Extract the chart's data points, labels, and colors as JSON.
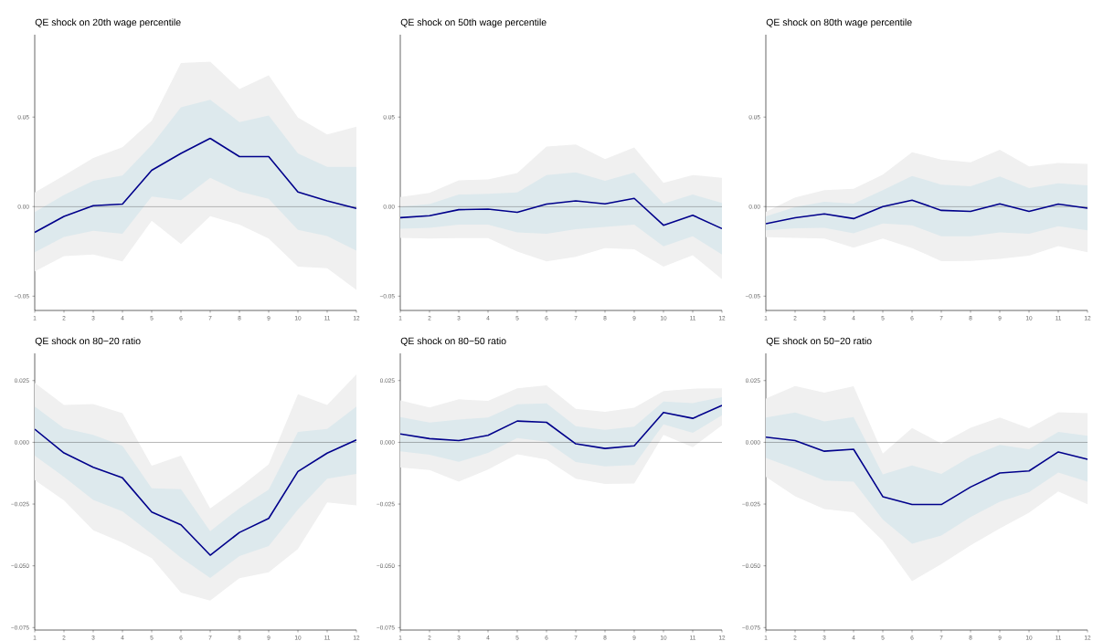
{
  "chart_data": [
    {
      "type": "line",
      "title": "QE shock on 20th wage percentile",
      "x": [
        1,
        2,
        3,
        4,
        5,
        6,
        7,
        8,
        9,
        10,
        11,
        12
      ],
      "xlim": [
        1,
        12
      ],
      "xticks": [
        1,
        2,
        3,
        4,
        5,
        6,
        7,
        8,
        9,
        10,
        11,
        12
      ],
      "ylim": [
        -0.058,
        0.096
      ],
      "yticks": [
        {
          "value": -0.05,
          "label": "−0.05"
        },
        {
          "value": 0,
          "label": "0.00"
        },
        {
          "value": 0.05,
          "label": "0.05"
        }
      ],
      "ref_lines": [
        {
          "axis": "y",
          "value": 0,
          "color": "#333333"
        }
      ],
      "series": [
        {
          "color": "#f0f0f0",
          "values": [
            null,
            null,
            null,
            null,
            null,
            null,
            null,
            null,
            null,
            null,
            null,
            null
          ],
          "upper": [
            0.0079,
            0.0173,
            0.0272,
            0.0332,
            0.048,
            0.0802,
            0.081,
            0.0656,
            0.0733,
            0.0497,
            0.0403,
            0.0446
          ],
          "lower": [
            -0.0362,
            -0.0277,
            -0.0267,
            -0.0306,
            -0.0079,
            -0.0209,
            -0.0053,
            -0.0101,
            -0.0178,
            -0.0335,
            -0.0344,
            -0.0465
          ]
        },
        {
          "color": "#dde9ed",
          "values": [
            null,
            null,
            null,
            null,
            null,
            null,
            null,
            null,
            null,
            null,
            null,
            null
          ],
          "upper": [
            -0.003,
            0.0065,
            0.0144,
            0.0174,
            0.0344,
            0.0554,
            0.0597,
            0.0472,
            0.0509,
            0.0297,
            0.0222,
            0.0222
          ],
          "lower": [
            -0.0255,
            -0.0169,
            -0.0135,
            -0.0152,
            0.0056,
            0.0036,
            0.0161,
            0.0084,
            0.0044,
            -0.013,
            -0.0164,
            -0.0246
          ]
        },
        {
          "color": "#00008b",
          "values": [
            -0.0144,
            -0.0055,
            0.0005,
            0.0014,
            0.0203,
            0.0297,
            0.0381,
            0.0279,
            0.0279,
            0.0082,
            0.0032,
            -0.001
          ]
        }
      ]
    },
    {
      "type": "line",
      "title": "QE shock on 50th wage percentile",
      "x": [
        1,
        2,
        3,
        4,
        5,
        6,
        7,
        8,
        9,
        10,
        11,
        12
      ],
      "xlim": [
        1,
        12
      ],
      "xticks": [
        1,
        2,
        3,
        4,
        5,
        6,
        7,
        8,
        9,
        10,
        11,
        12
      ],
      "ylim": [
        -0.058,
        0.096
      ],
      "yticks": [
        {
          "value": -0.05,
          "label": "−0.05"
        },
        {
          "value": 0,
          "label": "0.00"
        },
        {
          "value": 0.05,
          "label": "0.05"
        }
      ],
      "ref_lines": [
        {
          "axis": "y",
          "value": 0,
          "color": "#333333"
        }
      ],
      "series": [
        {
          "color": "#f0f0f0",
          "values": [
            null,
            null,
            null,
            null,
            null,
            null,
            null,
            null,
            null,
            null,
            null,
            null
          ],
          "upper": [
            0.0053,
            0.0077,
            0.0147,
            0.0152,
            0.0188,
            0.0335,
            0.0347,
            0.0265,
            0.033,
            0.0133,
            0.0176,
            0.0161
          ],
          "lower": [
            -0.0174,
            -0.0179,
            -0.0176,
            -0.0176,
            -0.0251,
            -0.0306,
            -0.028,
            -0.0232,
            -0.0238,
            -0.0335,
            -0.0272,
            -0.0405
          ]
        },
        {
          "color": "#dde9ed",
          "values": [
            null,
            null,
            null,
            null,
            null,
            null,
            null,
            null,
            null,
            null,
            null,
            null
          ],
          "upper": [
            0.0,
            0.0014,
            0.0067,
            0.0072,
            0.0079,
            0.0176,
            0.0191,
            0.0144,
            0.019,
            0.0017,
            0.0067,
            0.002
          ],
          "lower": [
            -0.0123,
            -0.0118,
            -0.0101,
            -0.0101,
            -0.0144,
            -0.0152,
            -0.0126,
            -0.0113,
            -0.0101,
            -0.0222,
            -0.0166,
            -0.0267
          ]
        },
        {
          "color": "#00008b",
          "values": [
            -0.0062,
            -0.0051,
            -0.0017,
            -0.0014,
            -0.0032,
            0.0014,
            0.0032,
            0.0015,
            0.0046,
            -0.0104,
            -0.0048,
            -0.0123
          ]
        }
      ]
    },
    {
      "type": "line",
      "title": "QE shock on 80th wage percentile",
      "x": [
        1,
        2,
        3,
        4,
        5,
        6,
        7,
        8,
        9,
        10,
        11,
        12
      ],
      "xlim": [
        1,
        12
      ],
      "xticks": [
        1,
        2,
        3,
        4,
        5,
        6,
        7,
        8,
        9,
        10,
        11,
        12
      ],
      "ylim": [
        -0.058,
        0.096
      ],
      "yticks": [
        {
          "value": -0.05,
          "label": "−0.05"
        },
        {
          "value": 0,
          "label": "0.00"
        },
        {
          "value": 0.05,
          "label": "0.05"
        }
      ],
      "ref_lines": [
        {
          "axis": "y",
          "value": 0,
          "color": "#333333"
        }
      ],
      "series": [
        {
          "color": "#f0f0f0",
          "values": [
            null,
            null,
            null,
            null,
            null,
            null,
            null,
            null,
            null,
            null,
            null,
            null
          ],
          "upper": [
            -0.0029,
            0.0051,
            0.0092,
            0.0099,
            0.0178,
            0.0304,
            0.0263,
            0.0248,
            0.0318,
            0.0224,
            0.0243,
            0.0238
          ],
          "lower": [
            -0.0171,
            -0.0174,
            -0.0178,
            -0.0229,
            -0.0178,
            -0.0232,
            -0.0304,
            -0.0303,
            -0.0292,
            -0.0274,
            -0.0221,
            -0.0255
          ]
        },
        {
          "color": "#dde9ed",
          "values": [
            null,
            null,
            null,
            null,
            null,
            null,
            null,
            null,
            null,
            null,
            null,
            null
          ],
          "upper": [
            -0.0055,
            -0.0003,
            0.0027,
            0.0017,
            0.0092,
            0.0171,
            0.0123,
            0.0113,
            0.0168,
            0.0103,
            0.013,
            0.0118
          ],
          "lower": [
            -0.0132,
            -0.0121,
            -0.0118,
            -0.0149,
            -0.0094,
            -0.0104,
            -0.0166,
            -0.0166,
            -0.0144,
            -0.0152,
            -0.0109,
            -0.0132
          ]
        },
        {
          "color": "#00008b",
          "values": [
            -0.0096,
            -0.0062,
            -0.0041,
            -0.0067,
            0.0,
            0.0036,
            -0.0021,
            -0.0027,
            0.0015,
            -0.0027,
            0.0014,
            -0.0009
          ]
        }
      ]
    },
    {
      "type": "line",
      "title": "QE shock on 80−20 ratio",
      "x": [
        1,
        2,
        3,
        4,
        5,
        6,
        7,
        8,
        9,
        10,
        11,
        12
      ],
      "xlim": [
        1,
        12
      ],
      "xticks": [
        1,
        2,
        3,
        4,
        5,
        6,
        7,
        8,
        9,
        10,
        11,
        12
      ],
      "ylim": [
        -0.076,
        0.036
      ],
      "yticks": [
        {
          "value": -0.075,
          "label": "−0.075"
        },
        {
          "value": -0.05,
          "label": "−0.050"
        },
        {
          "value": -0.025,
          "label": "−0.025"
        },
        {
          "value": 0,
          "label": "0.000"
        },
        {
          "value": 0.025,
          "label": "0.025"
        }
      ],
      "ref_lines": [
        {
          "axis": "y",
          "value": 0,
          "color": "#333333"
        }
      ],
      "series": [
        {
          "color": "#f0f0f0",
          "values": [
            null,
            null,
            null,
            null,
            null,
            null,
            null,
            null,
            null,
            null,
            null,
            null
          ],
          "upper": [
            0.0241,
            0.0151,
            0.0155,
            0.0118,
            -0.0095,
            -0.0054,
            -0.0267,
            -0.0183,
            -0.0089,
            0.0195,
            0.0151,
            0.0275
          ],
          "lower": [
            -0.0153,
            -0.0235,
            -0.0356,
            -0.0406,
            -0.0469,
            -0.0608,
            -0.0641,
            -0.055,
            -0.0526,
            -0.0432,
            -0.0243,
            -0.0255
          ]
        },
        {
          "color": "#dde9ed",
          "values": [
            null,
            null,
            null,
            null,
            null,
            null,
            null,
            null,
            null,
            null,
            null,
            null
          ],
          "upper": [
            0.0145,
            0.0057,
            0.003,
            -0.0014,
            -0.0186,
            -0.019,
            -0.036,
            -0.0267,
            -0.0192,
            0.0042,
            0.0054,
            0.0145
          ],
          "lower": [
            -0.0054,
            -0.014,
            -0.0233,
            -0.0279,
            -0.0371,
            -0.0467,
            -0.0549,
            -0.0461,
            -0.042,
            -0.0272,
            -0.0147,
            -0.0128
          ]
        },
        {
          "color": "#00008b",
          "values": [
            0.0053,
            -0.0043,
            -0.0101,
            -0.0144,
            -0.0282,
            -0.0334,
            -0.0457,
            -0.0365,
            -0.0308,
            -0.0118,
            -0.0044,
            0.001
          ]
        }
      ]
    },
    {
      "type": "line",
      "title": "QE shock on 80−50 ratio",
      "x": [
        1,
        2,
        3,
        4,
        5,
        6,
        7,
        8,
        9,
        10,
        11,
        12
      ],
      "xlim": [
        1,
        12
      ],
      "xticks": [
        1,
        2,
        3,
        4,
        5,
        6,
        7,
        8,
        9,
        10,
        11,
        12
      ],
      "ylim": [
        -0.076,
        0.036
      ],
      "yticks": [
        {
          "value": -0.075,
          "label": "−0.075"
        },
        {
          "value": -0.05,
          "label": "−0.050"
        },
        {
          "value": -0.025,
          "label": "−0.025"
        },
        {
          "value": 0,
          "label": "0.000"
        },
        {
          "value": 0.025,
          "label": "0.025"
        }
      ],
      "ref_lines": [
        {
          "axis": "y",
          "value": 0,
          "color": "#333333"
        }
      ],
      "series": [
        {
          "color": "#f0f0f0",
          "values": [
            null,
            null,
            null,
            null,
            null,
            null,
            null,
            null,
            null,
            null,
            null,
            null
          ],
          "upper": [
            0.017,
            0.0141,
            0.0174,
            0.0168,
            0.0219,
            0.0231,
            0.0135,
            0.0123,
            0.014,
            0.0208,
            0.0217,
            0.0219
          ],
          "lower": [
            -0.0102,
            -0.0112,
            -0.0159,
            -0.011,
            -0.0048,
            -0.007,
            -0.0147,
            -0.0169,
            -0.0167,
            0.003,
            -0.002,
            0.0069
          ]
        },
        {
          "color": "#dde9ed",
          "values": [
            null,
            null,
            null,
            null,
            null,
            null,
            null,
            null,
            null,
            null,
            null,
            null
          ],
          "upper": [
            0.0102,
            0.008,
            0.0092,
            0.01,
            0.0154,
            0.0158,
            0.0065,
            0.005,
            0.0063,
            0.0165,
            0.0159,
            0.0183
          ],
          "lower": [
            -0.0036,
            -0.005,
            -0.0079,
            -0.0043,
            0.0017,
            0.0002,
            -0.008,
            -0.0097,
            -0.0092,
            0.0073,
            0.0038,
            0.011
          ]
        },
        {
          "color": "#00008b",
          "values": [
            0.0034,
            0.0015,
            0.0007,
            0.0028,
            0.0086,
            0.0081,
            -0.0006,
            -0.0025,
            -0.0014,
            0.0121,
            0.0097,
            0.0149
          ]
        }
      ]
    },
    {
      "type": "line",
      "title": "QE shock on 50−20 ratio",
      "x": [
        1,
        2,
        3,
        4,
        5,
        6,
        7,
        8,
        9,
        10,
        11,
        12
      ],
      "xlim": [
        1,
        12
      ],
      "xticks": [
        1,
        2,
        3,
        4,
        5,
        6,
        7,
        8,
        9,
        10,
        11,
        12
      ],
      "ylim": [
        -0.076,
        0.036
      ],
      "yticks": [
        {
          "value": -0.075,
          "label": "−0.075"
        },
        {
          "value": -0.05,
          "label": "−0.050"
        },
        {
          "value": -0.025,
          "label": "−0.025"
        },
        {
          "value": 0,
          "label": "0.000"
        },
        {
          "value": 0.025,
          "label": "0.025"
        }
      ],
      "ref_lines": [
        {
          "axis": "y",
          "value": 0,
          "color": "#333333"
        }
      ],
      "series": [
        {
          "color": "#f0f0f0",
          "values": [
            null,
            null,
            null,
            null,
            null,
            null,
            null,
            null,
            null,
            null,
            null,
            null
          ],
          "upper": [
            0.0177,
            0.0228,
            0.0201,
            0.0227,
            -0.0046,
            0.0058,
            -0.0005,
            0.0059,
            0.01,
            0.0057,
            0.0122,
            0.0118
          ],
          "lower": [
            -0.014,
            -0.0218,
            -0.027,
            -0.0283,
            -0.0399,
            -0.0562,
            -0.0493,
            -0.0417,
            -0.0349,
            -0.0285,
            -0.0199,
            -0.0251
          ]
        },
        {
          "color": "#dde9ed",
          "values": [
            null,
            null,
            null,
            null,
            null,
            null,
            null,
            null,
            null,
            null,
            null,
            null
          ],
          "upper": [
            0.01,
            0.0121,
            0.0085,
            0.0102,
            -0.013,
            -0.0094,
            -0.0128,
            -0.0058,
            -0.0011,
            -0.0028,
            0.0042,
            0.0026
          ],
          "lower": [
            -0.0063,
            -0.0107,
            -0.0155,
            -0.0159,
            -0.0313,
            -0.0411,
            -0.0377,
            -0.0303,
            -0.0241,
            -0.0202,
            -0.0122,
            -0.0159
          ]
        },
        {
          "color": "#00008b",
          "values": [
            0.0021,
            0.0007,
            -0.0036,
            -0.0028,
            -0.022,
            -0.0252,
            -0.0252,
            -0.0181,
            -0.0124,
            -0.0116,
            -0.0039,
            -0.0069
          ]
        }
      ]
    }
  ]
}
